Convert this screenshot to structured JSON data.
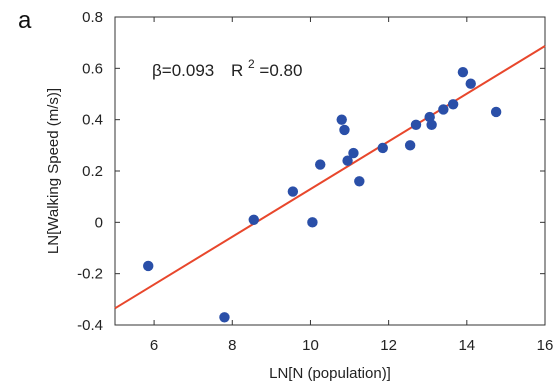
{
  "panel_label": "a",
  "annotation": {
    "beta_text": "β=0.093",
    "r2_prefix": "R",
    "r2_sup": "2",
    "r2_suffix": "=0.80"
  },
  "chart_data": {
    "type": "scatter",
    "xlabel": "LN[N (population)]",
    "ylabel": "LN[Walking Speed (m/s)]",
    "xlim": [
      5,
      16
    ],
    "ylim": [
      -0.4,
      0.8
    ],
    "xticks": [
      6,
      8,
      10,
      12,
      14,
      16
    ],
    "xtick_labels": [
      "6",
      "8",
      "10",
      "12",
      "14",
      "16"
    ],
    "yticks": [
      -0.4,
      -0.2,
      0,
      0.2,
      0.4,
      0.6,
      0.8
    ],
    "ytick_labels": [
      "-0.4",
      "-0.2",
      "0",
      "0.2",
      "0.4",
      "0.6",
      "0.8"
    ],
    "grid": false,
    "point_color": "#2a4fa8",
    "fit_color": "#e8472c",
    "points": [
      {
        "x": 5.85,
        "y": -0.17
      },
      {
        "x": 7.8,
        "y": -0.37
      },
      {
        "x": 8.55,
        "y": 0.01
      },
      {
        "x": 9.55,
        "y": 0.12
      },
      {
        "x": 10.05,
        "y": 0.0
      },
      {
        "x": 10.25,
        "y": 0.225
      },
      {
        "x": 10.8,
        "y": 0.4
      },
      {
        "x": 10.87,
        "y": 0.36
      },
      {
        "x": 10.95,
        "y": 0.24
      },
      {
        "x": 11.1,
        "y": 0.27
      },
      {
        "x": 11.25,
        "y": 0.16
      },
      {
        "x": 11.85,
        "y": 0.29
      },
      {
        "x": 12.55,
        "y": 0.3
      },
      {
        "x": 12.7,
        "y": 0.38
      },
      {
        "x": 13.05,
        "y": 0.41
      },
      {
        "x": 13.1,
        "y": 0.38
      },
      {
        "x": 13.4,
        "y": 0.44
      },
      {
        "x": 13.65,
        "y": 0.46
      },
      {
        "x": 13.9,
        "y": 0.585
      },
      {
        "x": 14.1,
        "y": 0.54
      },
      {
        "x": 14.75,
        "y": 0.43
      }
    ],
    "fit_line": {
      "x": [
        5,
        16
      ],
      "y": [
        -0.335,
        0.687
      ]
    }
  }
}
